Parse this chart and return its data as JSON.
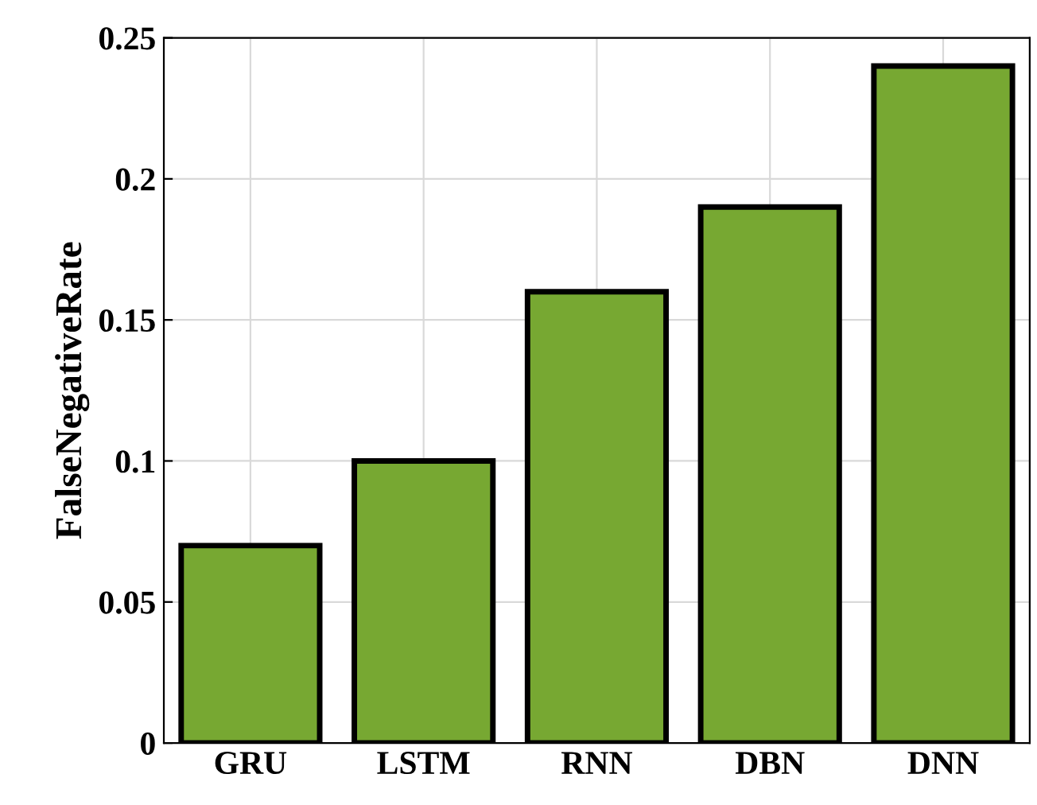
{
  "chart_data": {
    "type": "bar",
    "ylabel": "FalseNegativeRate",
    "categories": [
      "GRU",
      "LSTM",
      "RNN",
      "DBN",
      "DNN"
    ],
    "values": [
      0.07,
      0.1,
      0.16,
      0.19,
      0.24
    ],
    "color": "#77a832",
    "ylim": [
      0,
      0.25
    ],
    "yticks": [
      0,
      0.05,
      0.1,
      0.15,
      0.2,
      0.25
    ],
    "grid": true
  }
}
